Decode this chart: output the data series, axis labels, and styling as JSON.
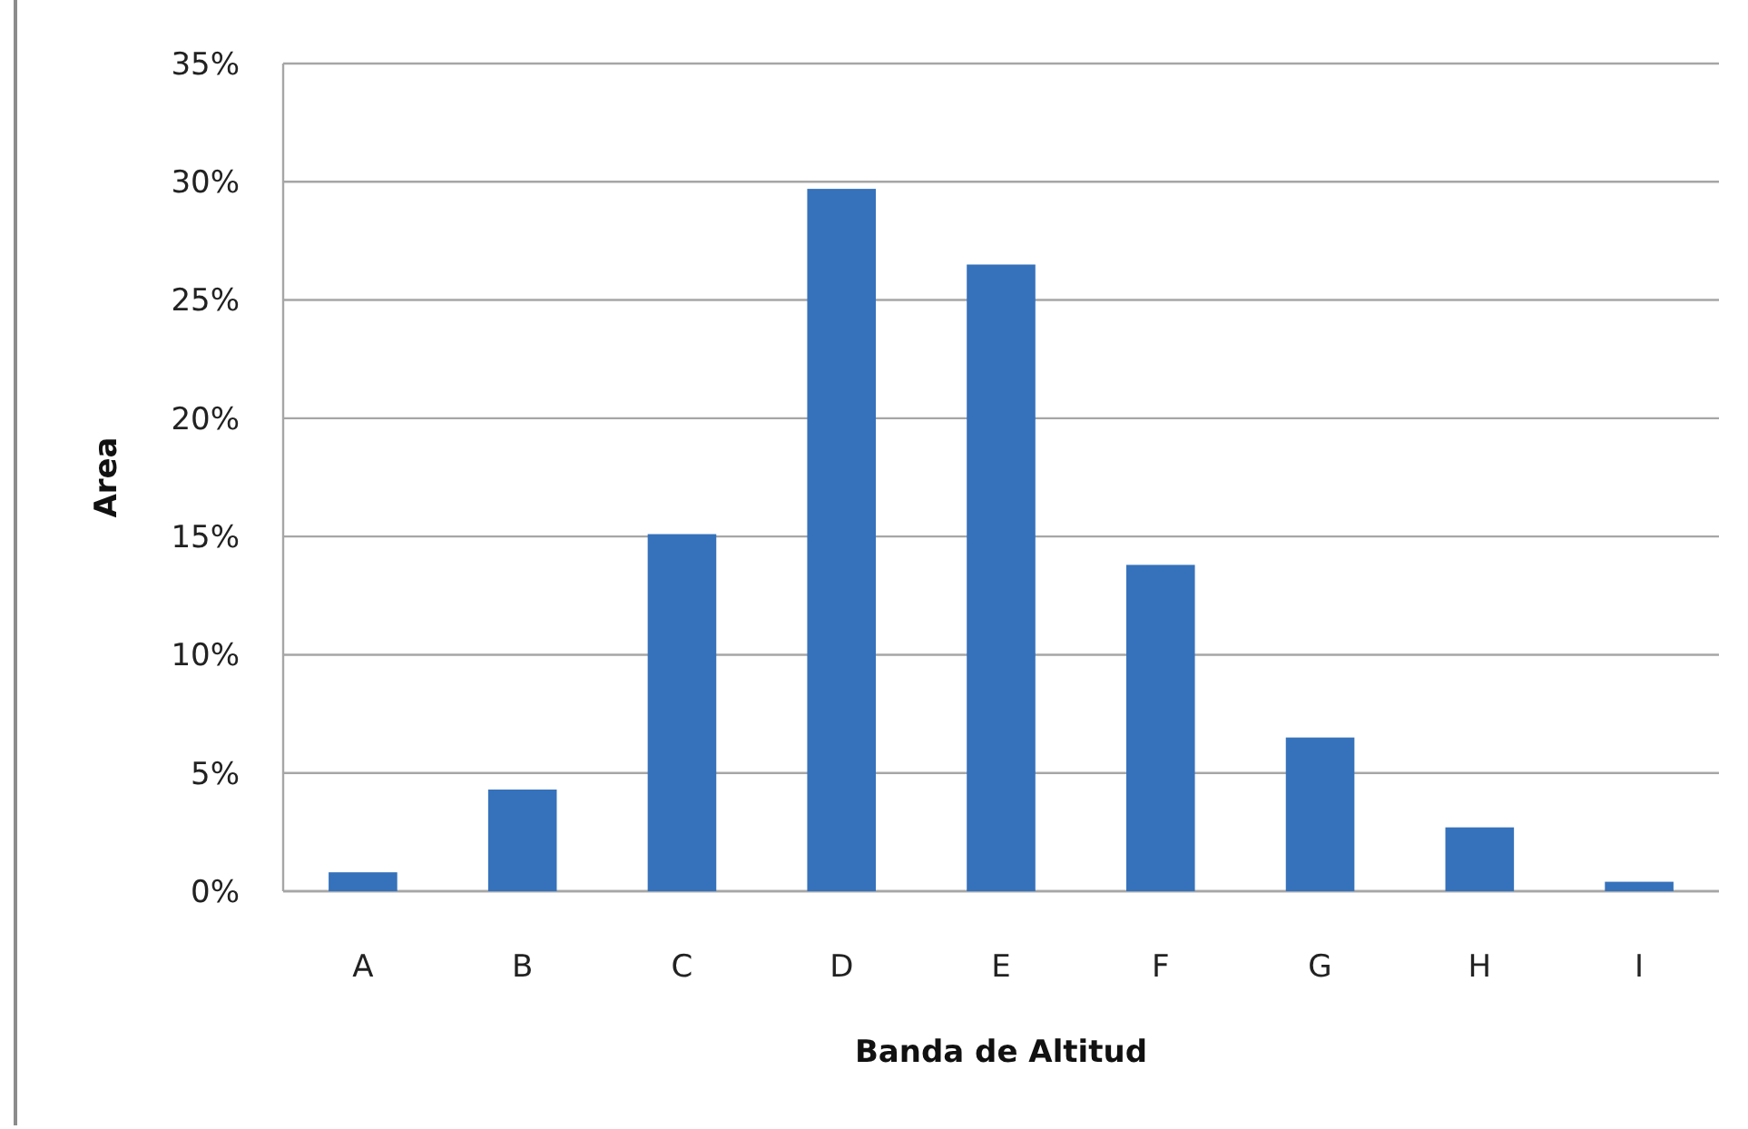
{
  "chart_data": {
    "type": "bar",
    "xlabel": "Banda de Altitud",
    "ylabel": "Area",
    "categories": [
      "A",
      "B",
      "C",
      "D",
      "E",
      "F",
      "G",
      "H",
      "I"
    ],
    "values": [
      0.8,
      4.3,
      15.1,
      29.7,
      26.5,
      13.8,
      6.5,
      2.7,
      0.4
    ],
    "color": "#3672bb",
    "ylim": [
      0,
      35
    ],
    "yticks": [
      {
        "value": 0,
        "label": "0%"
      },
      {
        "value": 5,
        "label": "5%"
      },
      {
        "value": 10,
        "label": "10%"
      },
      {
        "value": 15,
        "label": "15%"
      },
      {
        "value": 20,
        "label": "20%"
      },
      {
        "value": 25,
        "label": "25%"
      },
      {
        "value": 30,
        "label": "30%"
      },
      {
        "value": 35,
        "label": "35%"
      }
    ],
    "grid": "y"
  }
}
